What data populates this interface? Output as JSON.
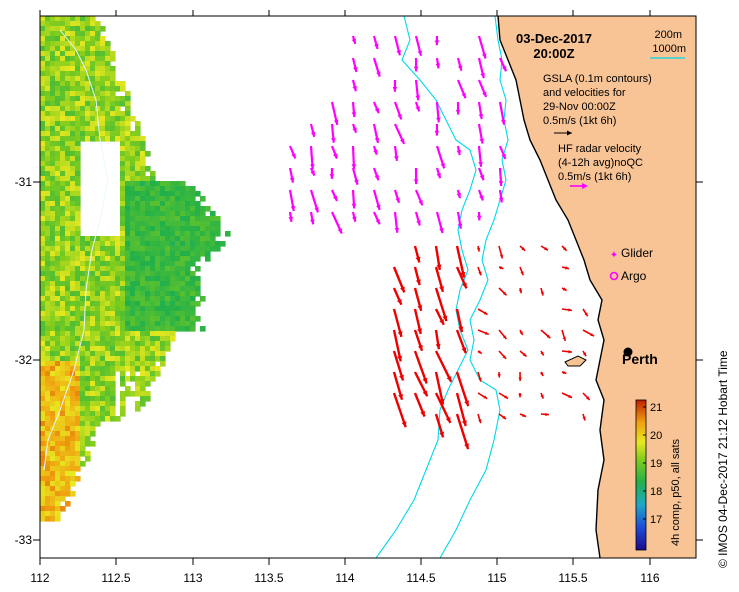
{
  "title": {
    "date": "03-Dec-2017",
    "time": "20:00Z"
  },
  "depth_legend": {
    "shallow": "200m",
    "deep": "1000m"
  },
  "gsla_legend": {
    "line1": "GSLA (0.1m contours)",
    "line2": "and velocities for",
    "line3": "29-Nov 00:00Z",
    "scale": "0.5m/s (1kt 6h)"
  },
  "hf_legend": {
    "line1": "HF radar velocity",
    "line2": "(4-12h avg)noQC",
    "scale": "0.5m/s (1kt 6h)"
  },
  "markers": {
    "glider": "Glider",
    "argo": "Argo",
    "city": "Perth"
  },
  "colorbar": {
    "label": "4h comp, p50, all sats",
    "ticks": [
      "21",
      "20",
      "19",
      "18",
      "17"
    ],
    "min": 16.3,
    "max": 21.7
  },
  "credit": "© IMOS 04-Dec-2017 21:12 Hobart Time",
  "axes": {
    "x_ticks": [
      "112",
      "112.5",
      "113",
      "113.5",
      "114",
      "114.5",
      "115",
      "115.5",
      "116"
    ],
    "y_ticks": [
      "-31",
      "-32",
      "-33"
    ],
    "lon_range": [
      112,
      116.3
    ],
    "lat_range": [
      -33.05,
      -30.05
    ]
  },
  "colors": {
    "land": "#f8c496",
    "isobath": "#00d8e8",
    "hf_vector": "#ff00ff",
    "current_vector": "#ee0000",
    "coast": "#000000"
  },
  "current_vectors_mean_speed_ms": 0.28,
  "hf_vectors_mean_speed_ms": 0.22
}
